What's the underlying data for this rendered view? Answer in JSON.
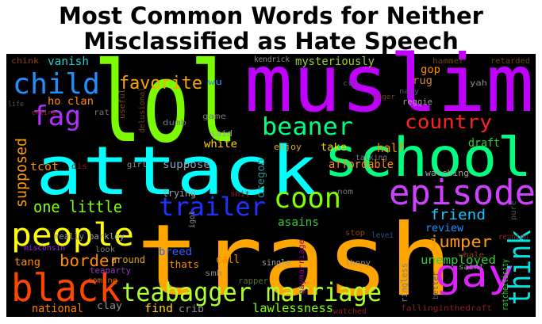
{
  "title": [
    "Most Common Words for Neither",
    "Misclassified as Hate Speech"
  ],
  "words": [
    {
      "text": "lol",
      "color": "#7cfc00"
    },
    {
      "text": "muslim",
      "color": "#c000ff"
    },
    {
      "text": "attack",
      "color": "#00ffff"
    },
    {
      "text": "trash",
      "color": "#ffa500"
    },
    {
      "text": "school",
      "color": "#00ff7f"
    },
    {
      "text": "episode",
      "color": "#d040ff"
    },
    {
      "text": "black",
      "color": "#ff4500"
    },
    {
      "text": "people",
      "color": "#ffff00"
    },
    {
      "text": "child",
      "color": "#1e90ff"
    },
    {
      "text": "gay",
      "color": "#e020ff"
    },
    {
      "text": "teabagger marriage",
      "color": "#adff2f"
    },
    {
      "text": "coon",
      "color": "#7fff00"
    },
    {
      "text": "trailer",
      "color": "#2030ff"
    },
    {
      "text": "beaner",
      "color": "#00ff7f"
    },
    {
      "text": "fag",
      "color": "#b030ff"
    },
    {
      "text": "think",
      "color": "#00e5e5"
    },
    {
      "text": "country",
      "color": "#ff2020"
    },
    {
      "text": "favorite",
      "color": "#ffa500"
    },
    {
      "text": "supposed",
      "color": "#ff9a00"
    },
    {
      "text": "one little",
      "color": "#7fff00"
    },
    {
      "text": "border",
      "color": "#ff8c00"
    },
    {
      "text": "jumper",
      "color": "#ff9a00"
    },
    {
      "text": "friend",
      "color": "#1ec0ff"
    },
    {
      "text": "review",
      "color": "#1e90ff"
    },
    {
      "text": "unemployed",
      "color": "#32cd32"
    },
    {
      "text": "lawlessness",
      "color": "#7fff00"
    },
    {
      "text": "vanish",
      "color": "#20d0d0"
    },
    {
      "text": "ho clan",
      "color": "#ff8c00"
    },
    {
      "text": "tcot",
      "color": "#ff8c00"
    },
    {
      "text": "half",
      "color": "#ff8c00"
    },
    {
      "text": "draft",
      "color": "#32cd32"
    },
    {
      "text": "mysteriously",
      "color": "#9acd32"
    },
    {
      "text": "rug",
      "color": "#cd853f"
    },
    {
      "text": "gop",
      "color": "#ff8c00"
    },
    {
      "text": "suppose",
      "color": "#87a0c0"
    },
    {
      "text": "white",
      "color": "#ffd700"
    },
    {
      "text": "enjoy",
      "color": "#daa520"
    },
    {
      "text": "take",
      "color": "#eedd00"
    },
    {
      "text": "affordable",
      "color": "#ff8c00"
    },
    {
      "text": "oregon",
      "color": "#2e8b8b"
    },
    {
      "text": "nom",
      "color": "#777777"
    },
    {
      "text": "asains",
      "color": "#32cd32"
    },
    {
      "text": "tang",
      "color": "#ff8c00"
    },
    {
      "text": "call",
      "color": "#ff8c00"
    },
    {
      "text": "find",
      "color": "#ffd700"
    },
    {
      "text": "national",
      "color": "#ff7f00"
    },
    {
      "text": "clay",
      "color": "#909090"
    },
    {
      "text": "crib",
      "color": "#909090"
    },
    {
      "text": "breed",
      "color": "#3060ff"
    },
    {
      "text": "thats",
      "color": "#ff8c00"
    },
    {
      "text": "around",
      "color": "#daa520"
    },
    {
      "text": "coming",
      "color": "#cd6600"
    },
    {
      "text": "teaparty",
      "color": "#9932cc"
    },
    {
      "text": "look",
      "color": "#808080"
    },
    {
      "text": "really",
      "color": "#909090"
    },
    {
      "text": "barkley",
      "color": "#a0a0a0"
    },
    {
      "text": "misconsin",
      "color": "#8a2be2"
    },
    {
      "text": "smh",
      "color": "#888888"
    },
    {
      "text": "rapper",
      "color": "#556b2f"
    },
    {
      "text": "single",
      "color": "#a0a0a0"
    },
    {
      "text": "lhnny",
      "color": "#909090"
    },
    {
      "text": "ringless",
      "color": "#808080"
    },
    {
      "text": "gaymarriage",
      "color": "#8b008b"
    },
    {
      "text": "saint",
      "color": "#909090"
    },
    {
      "text": "whale",
      "color": "#8b4513"
    },
    {
      "text": "reunion",
      "color": "#8b2020"
    },
    {
      "text": "levei",
      "color": "#2f4f8f"
    },
    {
      "text": "stop",
      "color": "#8b4513"
    },
    {
      "text": "pure",
      "color": "#555555"
    },
    {
      "text": "ratchetticity",
      "color": "#32cd32"
    },
    {
      "text": "fallinginthedraft",
      "color": "#8b2020"
    },
    {
      "text": "watched",
      "color": "#8b2020"
    },
    {
      "text": "better",
      "color": "#555577"
    },
    {
      "text": "hammer",
      "color": "#6b4513"
    },
    {
      "text": "retarded",
      "color": "#6b4513"
    },
    {
      "text": "kendrick",
      "color": "#909090"
    },
    {
      "text": "cuz",
      "color": "#555555"
    },
    {
      "text": "yah",
      "color": "#909090"
    },
    {
      "text": "naxy",
      "color": "#555577"
    },
    {
      "text": "reggie",
      "color": "#a0a0a0"
    },
    {
      "text": "tiger",
      "color": "#6b4513"
    },
    {
      "text": "talking",
      "color": "#777777"
    },
    {
      "text": "watching",
      "color": "#a0a0a0"
    },
    {
      "text": "chink",
      "color": "#8b4513"
    },
    {
      "text": "life",
      "color": "#555555"
    },
    {
      "text": "entire",
      "color": "#8b2020"
    },
    {
      "text": "rat",
      "color": "#777777"
    },
    {
      "text": "useful",
      "color": "#8b4513"
    },
    {
      "text": "delusional",
      "color": "#6b4513"
    },
    {
      "text": "dumb",
      "color": "#777777"
    },
    {
      "text": "game",
      "color": "#777777"
    },
    {
      "text": "said",
      "color": "#a0a0a0"
    },
    {
      "text": "wu",
      "color": "#1e90ff"
    },
    {
      "text": "dis",
      "color": "#8b2020"
    },
    {
      "text": "girl",
      "color": "#909090"
    },
    {
      "text": "trying",
      "color": "#a0a0a0"
    },
    {
      "text": "shit",
      "color": "#8b2020"
    },
    {
      "text": "igot",
      "color": "#909090"
    }
  ]
}
